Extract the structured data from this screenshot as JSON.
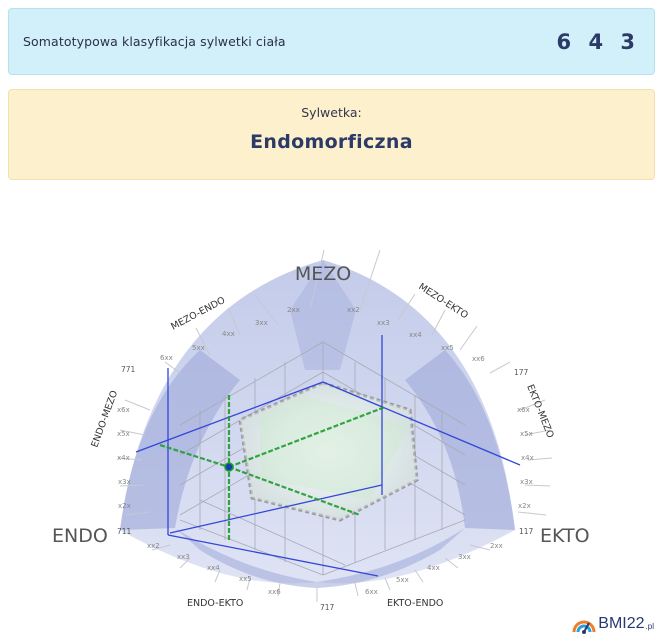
{
  "result": {
    "label": "Somatotypowa klasyfikacja sylwetki ciała",
    "value": "6 4 3"
  },
  "body_shape": {
    "label": "Sylwetka:",
    "value": "Endomorficzna"
  },
  "chart_data": {
    "type": "diagram",
    "poles": {
      "top": "MEZO",
      "left": "ENDO",
      "right": "EKTO"
    },
    "sectors": {
      "mezo_endo": "MEZO-ENDO",
      "mezo_ekto": "MEZO-EKTO",
      "endo_mezo": "ENDO-MEZO",
      "ekto_mezo": "EKTO-MEZO",
      "endo_ekto": "ENDO-EKTO",
      "ekto_endo": "EKTO-ENDO"
    },
    "corner_codes": {
      "upper_left": "771",
      "upper_right": "177",
      "left": "711",
      "right": "117",
      "bottom": "717"
    },
    "ticks_top_left": [
      "2xx",
      "3xx",
      "4xx",
      "5xx",
      "6xx"
    ],
    "ticks_top_right": [
      "xx2",
      "xx3",
      "xx4",
      "xx5",
      "xx6"
    ],
    "ticks_left": [
      "x6x",
      "x5x",
      "x4x",
      "x3x",
      "x2x"
    ],
    "ticks_right": [
      "x6x",
      "x5x",
      "x4x",
      "x3x",
      "x2x"
    ],
    "ticks_bottom_left": [
      "xx2",
      "xx3",
      "xx4",
      "xx5",
      "xx6"
    ],
    "ticks_bottom_right": [
      "2xx",
      "3xx",
      "4xx",
      "5xx",
      "6xx"
    ],
    "somatotype": {
      "endo": 6,
      "mezo": 4,
      "ekto": 3
    },
    "marker_color": "#1f9d2f",
    "axis_color": "#2a3bd6"
  },
  "brand": {
    "name": "BMI",
    "num": "22",
    "tld": ".pl"
  }
}
